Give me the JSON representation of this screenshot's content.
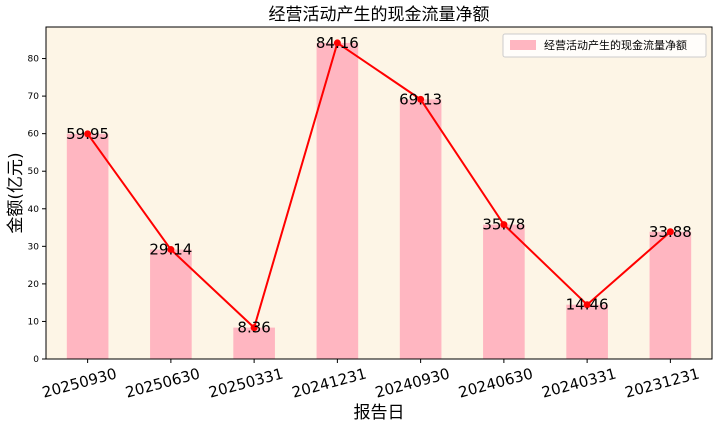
{
  "chart_data": {
    "type": "bar",
    "title": "经营活动产生的现金流量净额",
    "xlabel": "报告日",
    "ylabel": "金额(亿元)",
    "categories": [
      "20250930",
      "20250630",
      "20250331",
      "20241231",
      "20240930",
      "20240630",
      "20240331",
      "20231231"
    ],
    "series": [
      {
        "name": "经营活动产生的现金流量净额",
        "values": [
          59.95,
          29.14,
          8.36,
          84.16,
          69.13,
          35.78,
          14.46,
          33.88
        ]
      }
    ],
    "data_labels": [
      "59.95",
      "29.14",
      "8.36",
      "84.16",
      "69.13",
      "35.78",
      "14.46",
      "33.88"
    ],
    "yticks": [
      "0",
      "10",
      "20",
      "30",
      "40",
      "50",
      "60",
      "70",
      "80"
    ],
    "ylim": [
      0,
      88.4
    ],
    "overlay_line": true,
    "grid": false,
    "legend_position": "top-right",
    "colors": {
      "bar": "#ffb6c1",
      "line": "#ff0000",
      "plot_background": "#fdf5e6",
      "frame": "#000000"
    }
  }
}
